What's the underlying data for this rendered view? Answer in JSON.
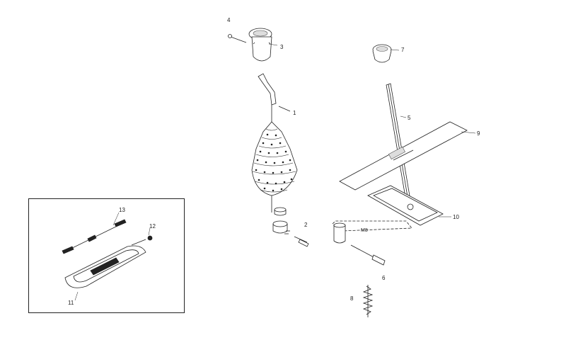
{
  "diagram": {
    "callouts": {
      "c1": "1",
      "c2": "2",
      "c3": "3",
      "c4": "4",
      "c5": "5",
      "c6": "6",
      "c7": "7",
      "c8": "8",
      "c9": "9",
      "c10": "10",
      "c11": "11",
      "c12": "12",
      "c13": "13"
    },
    "nut_marking": "M8"
  }
}
